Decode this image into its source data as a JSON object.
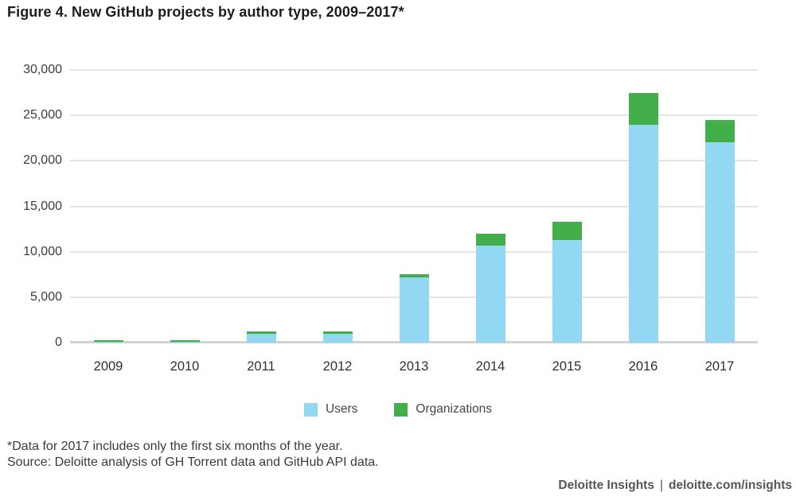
{
  "chart_data": {
    "type": "bar",
    "stacked": true,
    "title": "Figure 4. New GitHub projects by author type, 2009–2017*",
    "categories": [
      "2009",
      "2010",
      "2011",
      "2012",
      "2013",
      "2014",
      "2015",
      "2016",
      "2017"
    ],
    "series": [
      {
        "name": "Users",
        "color": "#92D8F3",
        "values": [
          100,
          100,
          1000,
          1000,
          7200,
          10700,
          11300,
          24000,
          22000
        ]
      },
      {
        "name": "Organizations",
        "color": "#43AF4A",
        "values": [
          150,
          150,
          200,
          200,
          300,
          1300,
          2000,
          3500,
          2500
        ]
      }
    ],
    "xlabel": "",
    "ylabel": "",
    "ylim": [
      0,
      30000
    ],
    "ytick_values": [
      0,
      5000,
      10000,
      15000,
      20000,
      25000,
      30000
    ],
    "ytick_labels": [
      "0",
      "5,000",
      "10,000",
      "15,000",
      "20,000",
      "25,000",
      "30,000"
    ],
    "grid": "horizontal",
    "legend_position": "bottom",
    "annotations": []
  },
  "notes": {
    "footnote": "*Data for 2017 includes only the first six months of the year.",
    "source": "Source: Deloitte analysis of GH Torrent data and GitHub API data."
  },
  "footer": {
    "brand": "Deloitte Insights",
    "separator": "|",
    "url": "deloitte.com/insights"
  },
  "colors": {
    "users": "#92D8F3",
    "organizations": "#43AF4A",
    "gridline": "#E4E4E4",
    "axis_line": "#D2D2D2",
    "title_text": "#1D1D1D",
    "footer_text": "#53565A"
  }
}
